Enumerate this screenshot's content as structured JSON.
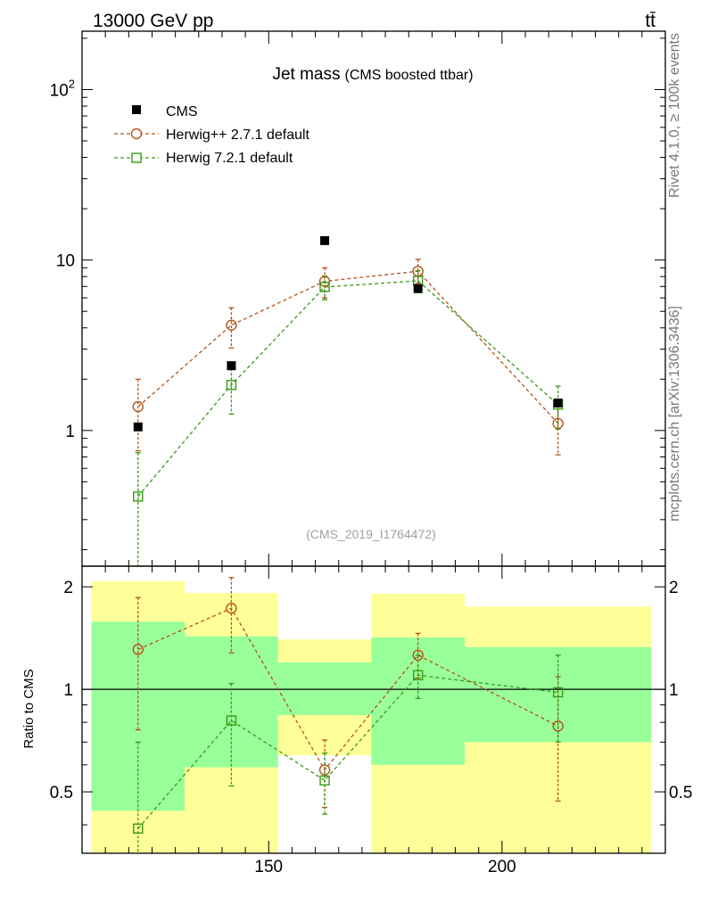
{
  "header": {
    "beam": "13000 GeV pp",
    "process": "tt̄",
    "side_top": "Rivet 4.1.0, ≥ 100k events",
    "side_bottom": "mcplots.cern.ch [arXiv:1306.3436]"
  },
  "chart_data": {
    "type": "scatter",
    "title": "Jet mass",
    "subtitle": "(CMS boosted ttbar)",
    "watermark": "(CMS_2019_I1764472)",
    "ylabel_ratio": "Ratio to CMS",
    "xlim": [
      110,
      235
    ],
    "ylim_main": [
      0.16,
      220
    ],
    "ylim_ratio": [
      0.33,
      2.3
    ],
    "x_ticks": [
      150,
      200
    ],
    "y_ticks_main": [
      {
        "value": 1,
        "label": "1"
      },
      {
        "value": 10,
        "label": "10"
      },
      {
        "value": 100,
        "label": "10",
        "exp": "2"
      }
    ],
    "y_ticks_ratio": [
      {
        "value": 0.5,
        "label": "0.5"
      },
      {
        "value": 1,
        "label": "1"
      },
      {
        "value": 2,
        "label": "2"
      }
    ],
    "bins": [
      {
        "x_low": 112,
        "x_high": 132,
        "x": 122,
        "cms": 1.05
      },
      {
        "x_low": 132,
        "x_high": 152,
        "x": 142,
        "cms": 2.4
      },
      {
        "x_low": 152,
        "x_high": 172,
        "x": 162,
        "cms": 13.0
      },
      {
        "x_low": 172,
        "x_high": 192,
        "x": 182,
        "cms": 6.8
      },
      {
        "x_low": 192,
        "x_high": 232,
        "x": 212,
        "cms": 1.45
      }
    ],
    "bands": [
      {
        "green_lo": 0.44,
        "green_hi": 1.58,
        "yellow_lo": 0.3,
        "yellow_hi": 2.08
      },
      {
        "green_lo": 0.59,
        "green_hi": 1.43,
        "yellow_lo": 0.3,
        "yellow_hi": 1.92
      },
      {
        "green_lo": 0.84,
        "green_hi": 1.2,
        "yellow_lo": 0.64,
        "yellow_hi": 1.4
      },
      {
        "green_lo": 0.6,
        "green_hi": 1.42,
        "yellow_lo": 0.3,
        "yellow_hi": 1.91
      },
      {
        "green_lo": 0.7,
        "green_hi": 1.33,
        "yellow_lo": 0.3,
        "yellow_hi": 1.75
      }
    ],
    "series": [
      {
        "name": "CMS",
        "color": "#000000",
        "marker": "filled-square",
        "values": [
          1.05,
          2.4,
          13.0,
          6.8,
          1.45
        ]
      },
      {
        "name": "Herwig++ 2.7.1 default",
        "color": "#b5541b",
        "marker": "open-circle",
        "values": [
          1.38,
          4.15,
          7.5,
          8.6,
          1.1
        ],
        "err_low": [
          0.62,
          1.1,
          1.5,
          1.3,
          0.38
        ],
        "err_high": [
          0.62,
          1.1,
          1.5,
          1.5,
          0.38
        ],
        "ratio": [
          1.31,
          1.73,
          0.58,
          1.26,
          0.78
        ],
        "ratio_err_low": [
          0.55,
          0.45,
          0.13,
          0.18,
          0.31
        ],
        "ratio_err_high": [
          0.55,
          0.4,
          0.13,
          0.2,
          0.31
        ]
      },
      {
        "name": "Herwig 7.2.1 default",
        "color": "#3a9a16",
        "marker": "open-square",
        "values": [
          0.41,
          1.85,
          6.95,
          7.55,
          1.42
        ],
        "err_low": [
          0.33,
          0.6,
          1.1,
          1.1,
          0.4
        ],
        "err_high": [
          0.33,
          0.6,
          1.1,
          1.1,
          0.4
        ],
        "ratio": [
          0.39,
          0.81,
          0.54,
          1.1,
          0.98
        ],
        "ratio_err_low": [
          0.31,
          0.29,
          0.11,
          0.16,
          0.28
        ],
        "ratio_err_high": [
          0.31,
          0.23,
          0.11,
          0.16,
          0.28
        ]
      }
    ]
  }
}
